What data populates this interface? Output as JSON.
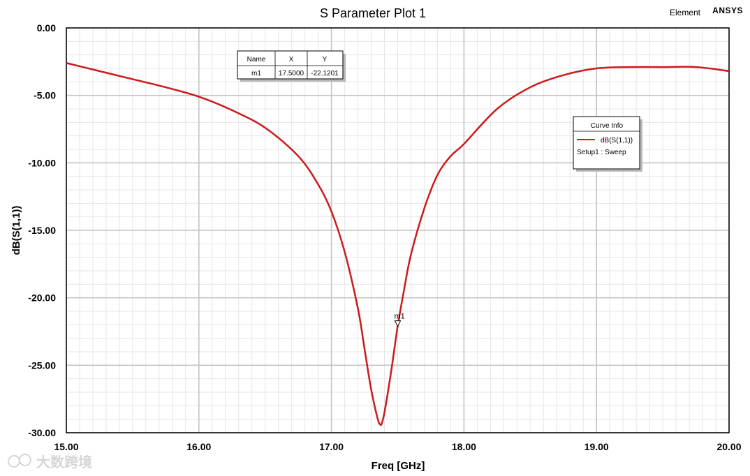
{
  "brand": {
    "element_label": "Element",
    "vendor": "ANSYS"
  },
  "marker_table": {
    "headers": [
      "Name",
      "X",
      "Y"
    ],
    "rows": [
      {
        "name": "m1",
        "x": "17.5000",
        "y": "-22.1201"
      }
    ]
  },
  "curve_info": {
    "title": "Curve Info",
    "entries": [
      {
        "name": "dB(S(1,1))",
        "setup": "Setup1 : Sweep",
        "color": "#cc1a1a"
      }
    ]
  },
  "watermark": "大数跨境",
  "chart_data": {
    "type": "line",
    "title": "S Parameter Plot 1",
    "xlabel": "Freq [GHz]",
    "ylabel": "dB(S(1,1))",
    "xlim": [
      15.0,
      20.0
    ],
    "ylim": [
      -30.0,
      0.0
    ],
    "x_ticks": [
      "15.00",
      "16.00",
      "17.00",
      "18.00",
      "19.00",
      "20.00"
    ],
    "y_ticks": [
      "0.00",
      "-5.00",
      "-10.00",
      "-15.00",
      "-20.00",
      "-25.00",
      "-30.00"
    ],
    "x_tick_values": [
      15,
      16,
      17,
      18,
      19,
      20
    ],
    "y_tick_values": [
      0,
      -5,
      -10,
      -15,
      -20,
      -25,
      -30
    ],
    "grid": true,
    "series": [
      {
        "name": "dB(S(1,1))",
        "color": "#cc1a1a",
        "x": [
          15.0,
          15.25,
          15.5,
          15.75,
          16.0,
          16.25,
          16.5,
          16.75,
          16.9,
          17.0,
          17.1,
          17.2,
          17.25,
          17.3,
          17.35,
          17.37,
          17.38,
          17.4,
          17.45,
          17.5,
          17.55,
          17.6,
          17.7,
          17.8,
          17.9,
          18.0,
          18.25,
          18.5,
          18.75,
          19.0,
          19.25,
          19.5,
          19.75,
          20.0
        ],
        "y": [
          -2.6,
          -3.2,
          -3.8,
          -4.4,
          -5.1,
          -6.1,
          -7.4,
          -9.5,
          -11.6,
          -13.6,
          -16.6,
          -20.8,
          -23.8,
          -26.8,
          -29.0,
          -29.4,
          -29.3,
          -28.5,
          -25.5,
          -22.1,
          -19.3,
          -16.8,
          -13.4,
          -10.9,
          -9.5,
          -8.6,
          -6.0,
          -4.4,
          -3.5,
          -3.0,
          -2.9,
          -2.9,
          -2.9,
          -3.2
        ]
      }
    ],
    "markers": [
      {
        "name": "m1",
        "x": 17.5,
        "y": -22.1201
      }
    ],
    "legend_position": "right"
  }
}
